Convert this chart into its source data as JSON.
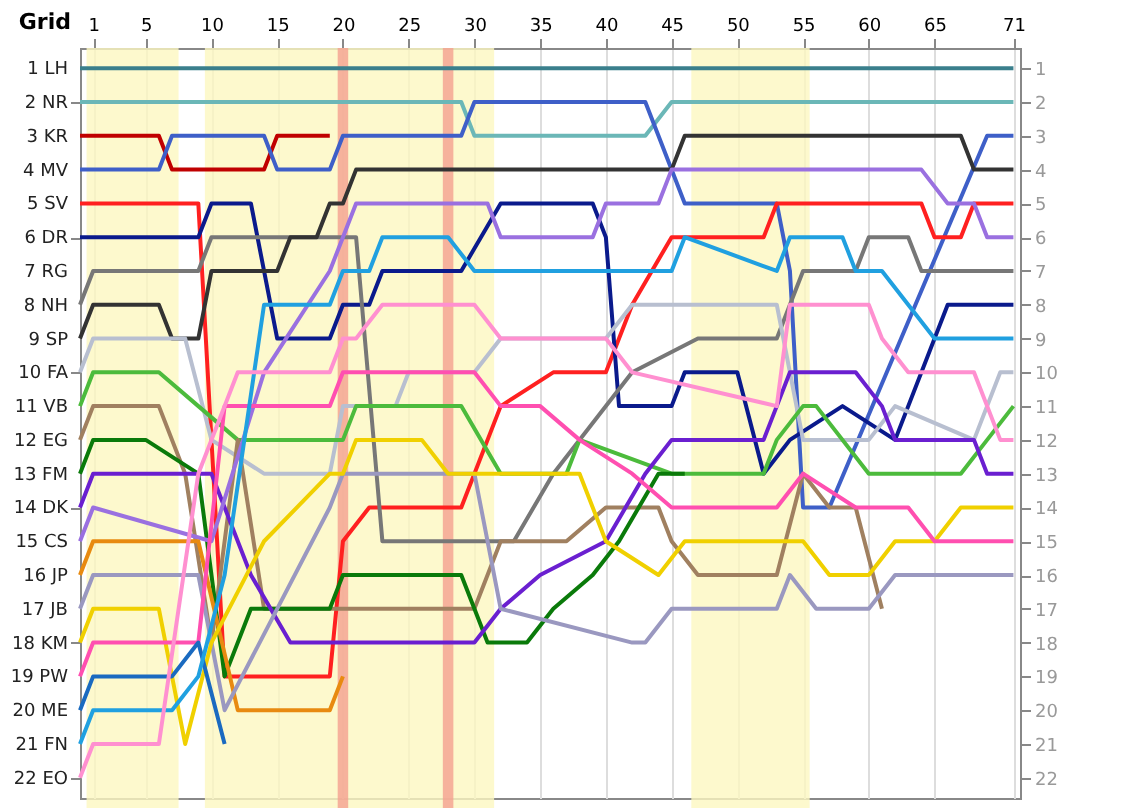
{
  "chart_data": {
    "type": "line",
    "ylabel": "Grid",
    "xlim": [
      0,
      71.5
    ],
    "xticks": [
      1,
      5,
      10,
      15,
      20,
      25,
      30,
      35,
      40,
      45,
      50,
      55,
      60,
      65,
      71
    ],
    "ylim": [
      22.6,
      0.4
    ],
    "yticks": [
      {
        "value": 1,
        "label": "1 LH"
      },
      {
        "value": 2,
        "label": "2 NR"
      },
      {
        "value": 3,
        "label": "3 KR"
      },
      {
        "value": 4,
        "label": "4 MV"
      },
      {
        "value": 5,
        "label": "5 SV"
      },
      {
        "value": 6,
        "label": "6 DR"
      },
      {
        "value": 7,
        "label": "7 RG"
      },
      {
        "value": 8,
        "label": "8 NH"
      },
      {
        "value": 9,
        "label": "9 SP"
      },
      {
        "value": 10,
        "label": "10 FA"
      },
      {
        "value": 11,
        "label": "11 VB"
      },
      {
        "value": 12,
        "label": "12 EG"
      },
      {
        "value": 13,
        "label": "13 FM"
      },
      {
        "value": 14,
        "label": "14 DK"
      },
      {
        "value": 15,
        "label": "15 CS"
      },
      {
        "value": 16,
        "label": "16 JP"
      },
      {
        "value": 17,
        "label": "17 JB"
      },
      {
        "value": 18,
        "label": "18 KM"
      },
      {
        "value": 19,
        "label": "19 PW"
      },
      {
        "value": 20,
        "label": "20 ME"
      },
      {
        "value": 21,
        "label": "21 FN"
      },
      {
        "value": 22,
        "label": "22 EO"
      }
    ],
    "y2lim": [
      22.6,
      0.4
    ],
    "y2ticks": [
      1,
      2,
      3,
      4,
      5,
      6,
      7,
      8,
      9,
      10,
      11,
      12,
      13,
      14,
      15,
      16,
      17,
      18,
      19,
      20,
      21,
      22
    ],
    "grid": "x",
    "line_style": "solid",
    "marker": "none",
    "bands": [
      {
        "axis": "x",
        "from": 0.5,
        "to": 7.5,
        "color": "#fdf8c0"
      },
      {
        "axis": "x",
        "from": 9.5,
        "to": 31.5,
        "color": "#fdf8c0"
      },
      {
        "axis": "x",
        "from": 46.5,
        "to": 55.5,
        "color": "#fdf8c0"
      },
      {
        "axis": "x",
        "from": 19.6,
        "to": 20.4,
        "color": "#f4a090"
      },
      {
        "axis": "x",
        "from": 27.6,
        "to": 28.4,
        "color": "#f4a090"
      }
    ],
    "series": [
      {
        "color": "#3a7f8c",
        "x": [
          0,
          71
        ],
        "values": [
          1,
          1
        ]
      },
      {
        "color": "#6bb7b7",
        "x": [
          0,
          29,
          30,
          43,
          45,
          71
        ],
        "values": [
          2,
          2,
          3,
          3,
          2,
          2
        ]
      },
      {
        "color": "#c00000",
        "x": [
          0,
          6,
          7,
          14,
          15,
          19
        ],
        "values": [
          3,
          3,
          4,
          4,
          3,
          3
        ]
      },
      {
        "color": "#3e5fc8",
        "x": [
          0,
          6,
          7,
          14,
          15,
          19,
          20,
          29,
          30,
          43,
          44,
          46,
          53,
          54,
          55,
          57,
          69,
          71
        ],
        "values": [
          4,
          4,
          3,
          3,
          4,
          4,
          3,
          3,
          2,
          2,
          3,
          5,
          5,
          7,
          14,
          14,
          3,
          3
        ]
      },
      {
        "color": "#ff2020",
        "x": [
          0,
          9,
          11,
          19,
          20,
          22,
          29,
          32,
          36,
          40,
          42,
          45,
          52,
          53,
          64,
          65,
          67,
          68,
          71
        ],
        "values": [
          5,
          5,
          19,
          19,
          15,
          14,
          14,
          11,
          10,
          10,
          8,
          6,
          6,
          5,
          5,
          6,
          6,
          5,
          5
        ]
      },
      {
        "color": "#0a1a8c",
        "x": [
          0,
          9,
          10,
          13,
          15,
          19,
          20,
          22,
          23,
          29,
          32,
          39,
          40,
          41,
          45,
          46,
          50,
          52,
          54,
          58,
          62,
          66,
          71
        ],
        "values": [
          6,
          6,
          5,
          5,
          9,
          9,
          8,
          8,
          7,
          7,
          5,
          5,
          6,
          11,
          11,
          10,
          10,
          13,
          12,
          11,
          12,
          8,
          8
        ]
      },
      {
        "color": "#777777",
        "x": [
          0,
          1,
          9,
          10,
          20,
          21,
          23,
          33,
          36,
          42,
          47,
          53,
          55,
          59,
          60,
          63,
          64,
          71
        ],
        "values": [
          8,
          7,
          7,
          6,
          6,
          6,
          15,
          15,
          13,
          10,
          9,
          9,
          7,
          7,
          6,
          6,
          7,
          7
        ]
      },
      {
        "color": "#333333",
        "x": [
          0,
          1,
          6,
          7,
          9,
          10,
          15,
          16,
          18,
          19,
          20,
          21,
          45,
          46,
          67,
          68,
          71
        ],
        "values": [
          9,
          8,
          8,
          9,
          9,
          7,
          7,
          6,
          6,
          5,
          5,
          4,
          4,
          3,
          3,
          4,
          4
        ]
      },
      {
        "color": "#b8bfd0",
        "x": [
          0,
          1,
          8,
          10,
          14,
          19,
          20,
          24,
          25,
          30,
          32,
          40,
          42,
          53,
          55,
          60,
          62,
          68,
          70,
          71
        ],
        "values": [
          10,
          9,
          9,
          12,
          13,
          13,
          11,
          11,
          10,
          10,
          9,
          9,
          8,
          8,
          12,
          12,
          11,
          12,
          10,
          10
        ]
      },
      {
        "color": "#4cbb3c",
        "x": [
          0,
          1,
          6,
          9,
          12,
          19,
          20,
          21,
          29,
          32,
          37,
          38,
          45,
          52,
          53,
          55,
          56,
          60,
          67,
          69,
          71
        ],
        "values": [
          11,
          10,
          10,
          11,
          12,
          12,
          12,
          11,
          11,
          13,
          13,
          12,
          13,
          13,
          12,
          11,
          11,
          13,
          13,
          12,
          11
        ]
      },
      {
        "color": "#a08060",
        "x": [
          0,
          1,
          6,
          8,
          10,
          12,
          14,
          19,
          20,
          30,
          32,
          37,
          40,
          44,
          45,
          47,
          53,
          55,
          57,
          59,
          61
        ],
        "values": [
          12,
          11,
          11,
          13,
          18,
          12,
          17,
          17,
          17,
          17,
          15,
          15,
          14,
          14,
          15,
          16,
          16,
          13,
          14,
          14,
          17
        ]
      },
      {
        "color": "#0a7a0a",
        "x": [
          0,
          1,
          5,
          9,
          11,
          13,
          19,
          20,
          29,
          31,
          34,
          36,
          39,
          41,
          44,
          46
        ],
        "values": [
          13,
          12,
          12,
          13,
          19,
          17,
          17,
          16,
          16,
          18,
          18,
          17,
          16,
          15,
          13,
          13
        ]
      },
      {
        "color": "#6a1fd0",
        "x": [
          0,
          1,
          10,
          13,
          16,
          19,
          20,
          30,
          32,
          35,
          40,
          43,
          45,
          52,
          53,
          54,
          59,
          61,
          62,
          68,
          69,
          71
        ],
        "values": [
          14,
          13,
          13,
          16,
          18,
          18,
          18,
          18,
          17,
          16,
          15,
          13,
          12,
          12,
          11,
          10,
          10,
          11,
          12,
          12,
          13,
          13
        ]
      },
      {
        "color": "#9a70e0",
        "x": [
          0,
          1,
          10,
          14,
          19,
          20,
          21,
          31,
          32,
          39,
          40,
          44,
          45,
          64,
          66,
          68,
          69,
          71
        ],
        "values": [
          15,
          14,
          15,
          10,
          7,
          6,
          5,
          5,
          6,
          6,
          5,
          5,
          4,
          4,
          5,
          5,
          6,
          6
        ]
      },
      {
        "color": "#e88a10",
        "x": [
          0,
          1,
          9,
          12,
          16,
          19,
          20
        ],
        "values": [
          16,
          15,
          15,
          20,
          20,
          20,
          19
        ]
      },
      {
        "color": "#9a98c0",
        "x": [
          0,
          1,
          9,
          11,
          19,
          20,
          30,
          32,
          42,
          43,
          45,
          53,
          54,
          56,
          60,
          62,
          71
        ],
        "values": [
          17,
          16,
          16,
          20,
          14,
          13,
          13,
          17,
          18,
          18,
          17,
          17,
          16,
          17,
          17,
          16,
          16
        ]
      },
      {
        "color": "#f0d000",
        "x": [
          0,
          1,
          6,
          8,
          10,
          14,
          19,
          20,
          21,
          26,
          28,
          34,
          38,
          40,
          44,
          46,
          52,
          55,
          57,
          60,
          62,
          65,
          67,
          71
        ],
        "values": [
          18,
          17,
          17,
          21,
          18,
          15,
          13,
          13,
          12,
          12,
          13,
          13,
          13,
          15,
          16,
          15,
          15,
          15,
          16,
          16,
          15,
          15,
          14,
          14
        ]
      },
      {
        "color": "#ff4fb0",
        "x": [
          0,
          1,
          9,
          11,
          14,
          19,
          20,
          21,
          30,
          32,
          35,
          38,
          42,
          45,
          50,
          53,
          55,
          59,
          60,
          63,
          65,
          71
        ],
        "values": [
          19,
          18,
          18,
          11,
          11,
          11,
          10,
          10,
          10,
          11,
          11,
          12,
          13,
          14,
          14,
          14,
          13,
          14,
          14,
          14,
          15,
          15
        ]
      },
      {
        "color": "#1a6ac0",
        "x": [
          0,
          1,
          7,
          9,
          11
        ],
        "values": [
          20,
          19,
          19,
          18,
          21
        ]
      },
      {
        "color": "#20a0e0",
        "x": [
          0,
          1,
          7,
          9,
          11,
          14,
          19,
          20,
          22,
          23,
          28,
          30,
          32,
          45,
          46,
          53,
          54,
          58,
          59,
          61,
          63,
          65,
          71
        ],
        "values": [
          21,
          20,
          20,
          19,
          16,
          8,
          8,
          7,
          7,
          6,
          6,
          7,
          7,
          7,
          6,
          7,
          6,
          6,
          7,
          7,
          8,
          9,
          9
        ]
      },
      {
        "color": "#ff90d0",
        "x": [
          0,
          1,
          5,
          6,
          9,
          12,
          19,
          20,
          21,
          23,
          30,
          32,
          40,
          42,
          53,
          54,
          60,
          61,
          63,
          68,
          70,
          71
        ],
        "values": [
          22,
          21,
          21,
          21,
          13,
          10,
          10,
          9,
          9,
          8,
          8,
          9,
          9,
          10,
          11,
          8,
          8,
          9,
          10,
          10,
          12,
          12
        ]
      }
    ]
  }
}
